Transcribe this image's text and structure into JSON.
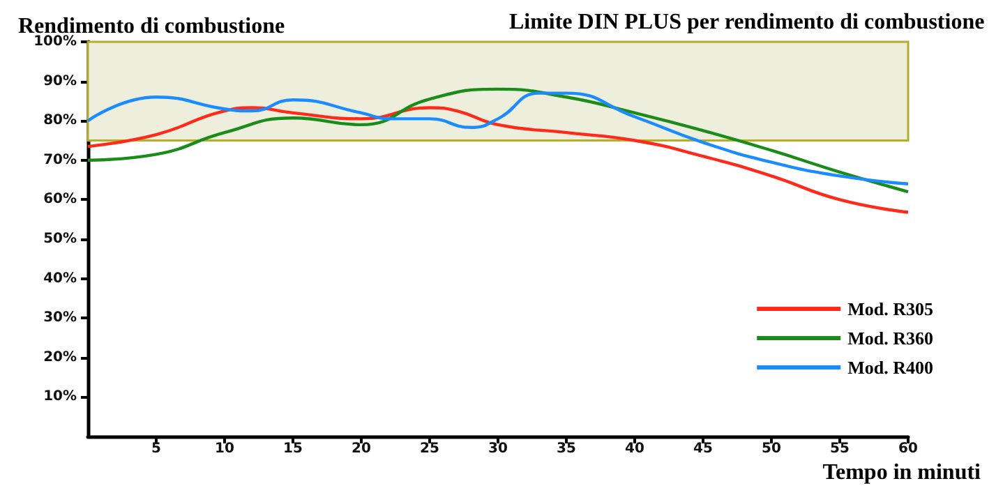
{
  "chart_data": {
    "type": "line",
    "ylabel": "Rendimento di combustione",
    "xlabel": "Tempo in minuti",
    "xlim": [
      0,
      60
    ],
    "xticks": [
      5,
      10,
      15,
      20,
      25,
      30,
      35,
      40,
      45,
      50,
      55,
      60
    ],
    "ylim": [
      0,
      100
    ],
    "yticks": [
      {
        "value": 10,
        "label": "10%"
      },
      {
        "value": 20,
        "label": "20%"
      },
      {
        "value": 30,
        "label": "30%"
      },
      {
        "value": 40,
        "label": "40%"
      },
      {
        "value": 50,
        "label": "50%"
      },
      {
        "value": 60,
        "label": "60%"
      },
      {
        "value": 70,
        "label": "70%"
      },
      {
        "value": 80,
        "label": "80%"
      },
      {
        "value": 90,
        "label": "90%"
      },
      {
        "value": 100,
        "label": "100%"
      }
    ],
    "grid": false,
    "legend": "right",
    "marker": "none",
    "line_style": "solid",
    "bands": [
      {
        "axis": "y",
        "from": 75,
        "to": 100,
        "label": "Limite DIN PLUS per rendimento di combustione",
        "color": "#eeeedc"
      }
    ],
    "series": [
      {
        "name": "Mod. R305",
        "color": "#ff2a1a",
        "x": [
          0,
          5,
          10,
          12,
          15,
          20,
          25,
          27,
          30,
          35,
          40,
          45,
          50,
          55,
          60
        ],
        "values": [
          73.5,
          76.5,
          82.5,
          83.3,
          82,
          80.5,
          83.3,
          82.5,
          79,
          77,
          75,
          71,
          66,
          60,
          56.8
        ]
      },
      {
        "name": "Mod. R360",
        "color": "#1a8c1a",
        "x": [
          0,
          5,
          10,
          15,
          20,
          25,
          30,
          35,
          40,
          45,
          50,
          55,
          60
        ],
        "values": [
          70,
          71.5,
          77,
          80.7,
          79,
          85.5,
          88,
          86,
          82,
          77.5,
          72.5,
          67,
          62
        ]
      },
      {
        "name": "Mod. R400",
        "color": "#1a8cff",
        "x": [
          0,
          5,
          10,
          12,
          15,
          20,
          22,
          25,
          28,
          30,
          33,
          35,
          40,
          45,
          50,
          55,
          60
        ],
        "values": [
          80,
          86,
          83,
          82.5,
          85.3,
          82,
          80.5,
          80.5,
          78.3,
          80.5,
          87,
          87,
          81,
          74.5,
          69.5,
          66,
          64
        ]
      }
    ]
  }
}
